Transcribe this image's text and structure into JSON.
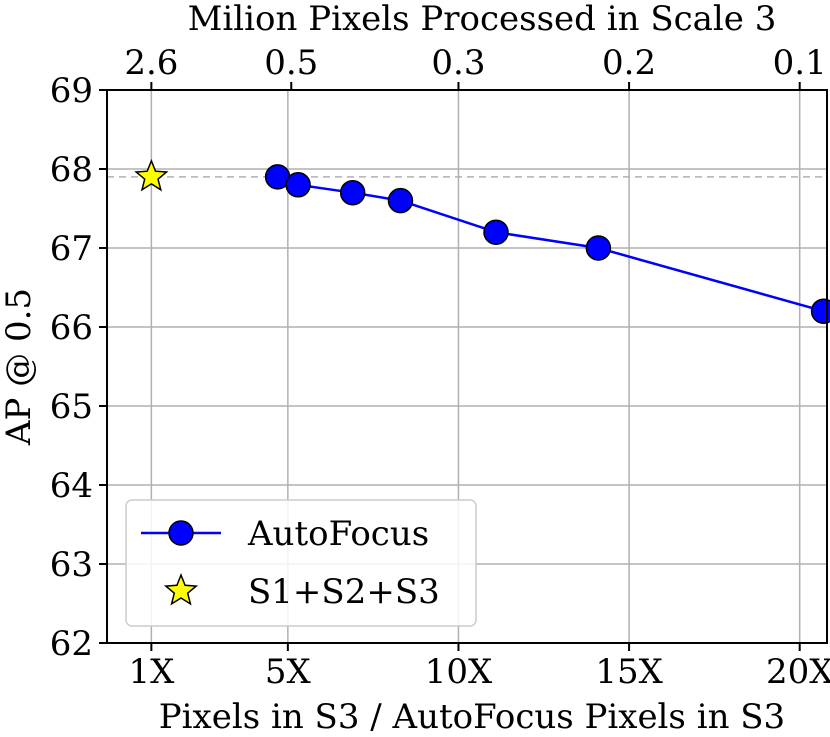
{
  "chart_data": {
    "type": "line",
    "title": "",
    "xlabel": "Pixels in S3 / AutoFocus Pixels in S3",
    "ylabel": "AP @ 0.5",
    "top_xlabel": "Milion Pixels Processed in Scale 3",
    "xlim": [
      -0.3,
      20.8
    ],
    "ylim": [
      62,
      69
    ],
    "x_ticks": [
      1,
      5,
      10,
      15,
      20
    ],
    "x_tick_labels": [
      "1X",
      "5X",
      "10X",
      "15X",
      "20X"
    ],
    "y_ticks": [
      62,
      63,
      64,
      65,
      66,
      67,
      68,
      69
    ],
    "y_tick_labels": [
      "62",
      "63",
      "64",
      "65",
      "66",
      "67",
      "68",
      "69"
    ],
    "top_x_ticks": [
      1,
      5.1,
      10,
      15,
      20
    ],
    "top_x_tick_labels": [
      "2.6",
      "0.5",
      "0.3",
      "0.2",
      "0.1"
    ],
    "grid": true,
    "reference_line_y": 67.9,
    "legend_position": "lower-left",
    "series": [
      {
        "name": "AutoFocus",
        "color": "#0000ff",
        "marker": "circle",
        "x": [
          4.7,
          5.3,
          6.9,
          8.3,
          11.1,
          14.1,
          20.7
        ],
        "y": [
          67.9,
          67.8,
          67.7,
          67.6,
          67.2,
          67.0,
          66.2
        ]
      },
      {
        "name": "S1+S2+S3",
        "color": "#ffff00",
        "marker": "star",
        "x": [
          1.0
        ],
        "y": [
          67.9
        ]
      }
    ]
  }
}
